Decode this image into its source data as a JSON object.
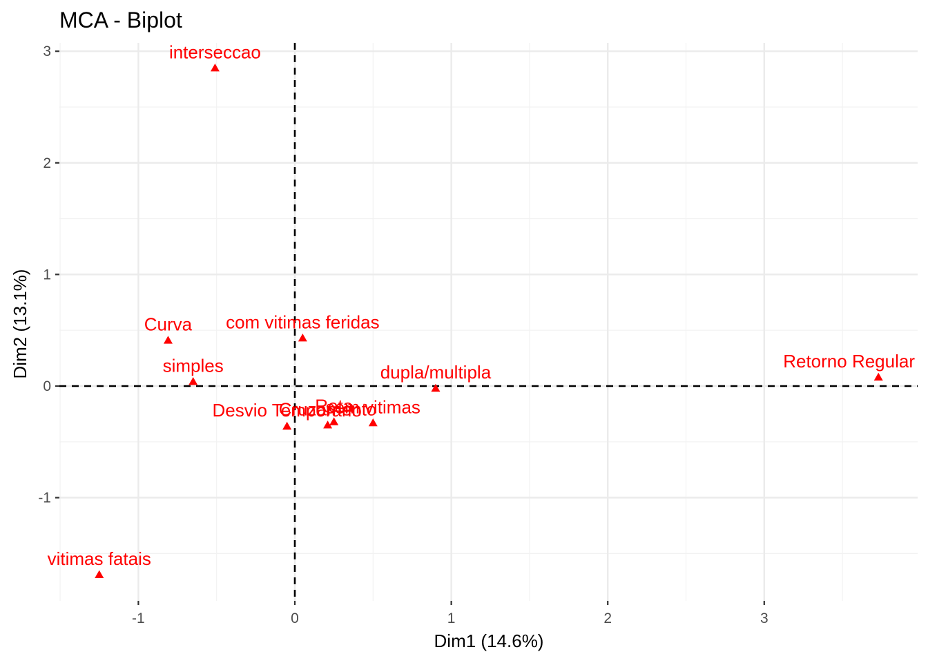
{
  "chart_data": {
    "type": "scatter",
    "title": "MCA - Biplot",
    "xlabel": "Dim1 (14.6%)",
    "ylabel": "Dim2 (13.1%)",
    "xlim": [
      -1.5,
      4.0
    ],
    "ylim": [
      -1.95,
      3.1
    ],
    "x_ticks": [
      -1,
      0,
      1,
      2,
      3
    ],
    "x_tick_labels": [
      "-1",
      "0",
      "1",
      "2",
      "3"
    ],
    "y_ticks": [
      -1,
      0,
      1,
      2,
      3
    ],
    "y_tick_labels": [
      "-1",
      "0",
      "1",
      "2",
      "3"
    ],
    "grid": true,
    "reference_lines": {
      "x": 0,
      "y": 0,
      "style": "dashed"
    },
    "marker": "triangle",
    "point_color": "#ff0000",
    "points": [
      {
        "label": "interseccao",
        "x": -0.51,
        "y": 2.85
      },
      {
        "label": "Curva",
        "x": -0.81,
        "y": 0.41
      },
      {
        "label": "com vitimas feridas",
        "x": 0.05,
        "y": 0.43
      },
      {
        "label": "simples",
        "x": -0.65,
        "y": 0.04
      },
      {
        "label": "Retorno Regular",
        "x": 3.73,
        "y": 0.08
      },
      {
        "label": "dupla/multipla",
        "x": 0.9,
        "y": -0.02
      },
      {
        "label": "Desvio Temporario",
        "x": -0.05,
        "y": -0.36
      },
      {
        "label": "Cruzamento",
        "x": 0.21,
        "y": -0.35
      },
      {
        "label": "Reta",
        "x": 0.25,
        "y": -0.32
      },
      {
        "label": "sem vitimas",
        "x": 0.5,
        "y": -0.33
      },
      {
        "label": "vitimas fatais",
        "x": -1.25,
        "y": -1.69
      }
    ]
  }
}
